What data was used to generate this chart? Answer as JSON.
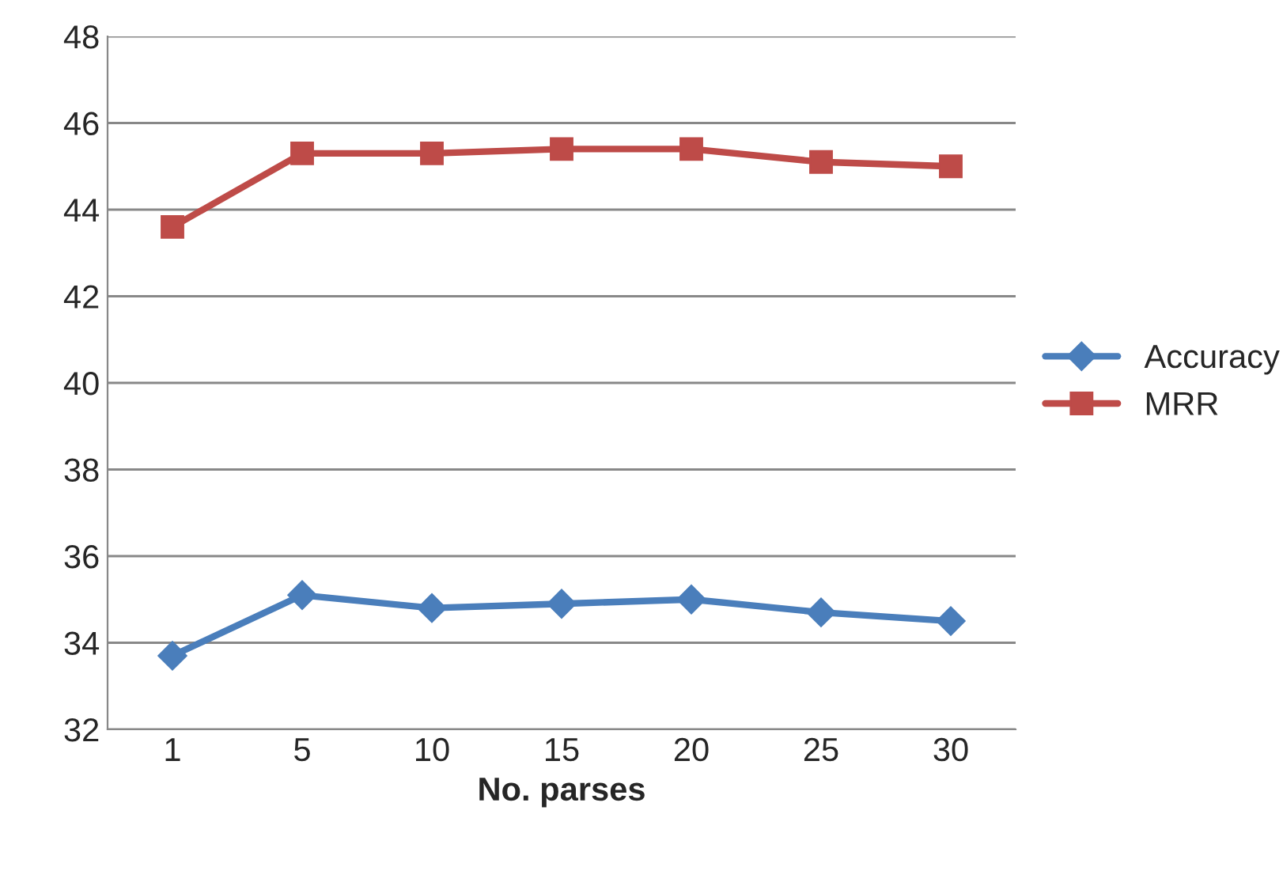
{
  "chart_data": {
    "type": "line",
    "xlabel": "No. parses",
    "categories": [
      "1",
      "5",
      "10",
      "15",
      "20",
      "25",
      "30"
    ],
    "series": [
      {
        "name": "Accuracy",
        "color": "#4a7ebb",
        "marker": "diamond",
        "values": [
          33.7,
          35.1,
          34.8,
          34.9,
          35.0,
          34.7,
          34.5
        ]
      },
      {
        "name": "MRR",
        "color": "#be4b48",
        "marker": "square",
        "values": [
          43.6,
          45.3,
          45.3,
          45.4,
          45.4,
          45.1,
          45.0
        ]
      }
    ],
    "ylim": [
      32,
      48
    ],
    "yticks": [
      32,
      34,
      36,
      38,
      40,
      42,
      44,
      46,
      48
    ],
    "grid": "y",
    "legend": "right",
    "line_style": "solid"
  }
}
